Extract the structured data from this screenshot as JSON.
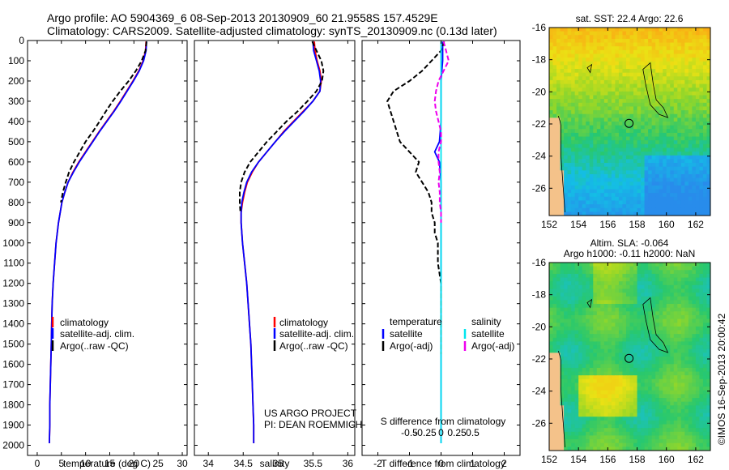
{
  "header": {
    "line1": "Argo profile: AO 5904369_6 08-Sep-2013 20130909_60 21.9558S 157.4529E",
    "line2": "Climatology: CARS2009. Satellite-adjusted climatology: synTS_20130909.nc (0.13d later)"
  },
  "colors": {
    "climatology": "#ff0000",
    "satellite_adj": "#0000ff",
    "argo": "#000000",
    "sat_s": "#00e5ee",
    "argo_s": "#ee00ee"
  },
  "chart_data": [
    {
      "type": "line",
      "id": "temperature",
      "xlabel": "temperature (deg C)",
      "ylabel": "",
      "xlim": [
        -2,
        31
      ],
      "ylim": [
        2050,
        0
      ],
      "xticks": [
        0,
        5,
        10,
        15,
        20,
        25,
        30
      ],
      "yticks": [
        0,
        100,
        200,
        300,
        400,
        500,
        600,
        700,
        800,
        900,
        1000,
        1100,
        1200,
        1300,
        1400,
        1500,
        1600,
        1700,
        1800,
        1900,
        2000
      ],
      "legend": [
        "climatology",
        "satellite-adj. clim.",
        "Argo(..raw -QC)"
      ],
      "legend_position": "lower-middle",
      "series": [
        {
          "name": "climatology",
          "color": "red",
          "depth": [
            5,
            50,
            100,
            150,
            200,
            250,
            300,
            350,
            400,
            450,
            500,
            550,
            600,
            650,
            700,
            750,
            800,
            900,
            1000,
            1100,
            1200,
            1300,
            1400,
            1500,
            1600,
            1700,
            1800,
            1900,
            1990
          ],
          "values": [
            22.5,
            22.4,
            21.9,
            21.0,
            19.8,
            18.5,
            17.2,
            15.8,
            14.3,
            12.8,
            11.4,
            10.0,
            8.6,
            7.4,
            6.4,
            5.7,
            5.1,
            4.4,
            3.9,
            3.6,
            3.3,
            3.1,
            3.0,
            2.9,
            2.8,
            2.7,
            2.6,
            2.6,
            2.5
          ]
        },
        {
          "name": "satellite-adj. clim.",
          "color": "blue",
          "depth": [
            5,
            50,
            100,
            150,
            200,
            250,
            300,
            350,
            400,
            450,
            500,
            550,
            600,
            650,
            700,
            750,
            800,
            900,
            1000,
            1100,
            1200,
            1300,
            1400,
            1500,
            1600,
            1700,
            1800,
            1900,
            1990
          ],
          "values": [
            22.6,
            22.5,
            22.0,
            21.1,
            19.9,
            18.6,
            17.3,
            15.9,
            14.4,
            12.9,
            11.5,
            10.1,
            8.7,
            7.5,
            6.4,
            5.7,
            5.1,
            4.4,
            3.9,
            3.6,
            3.3,
            3.1,
            3.0,
            2.9,
            2.8,
            2.7,
            2.6,
            2.6,
            2.5
          ]
        },
        {
          "name": "Argo(..raw -QC)",
          "color": "black",
          "dashed": true,
          "depth": [
            5,
            50,
            100,
            150,
            200,
            250,
            300,
            350,
            400,
            450,
            500,
            550,
            600,
            650,
            700,
            750,
            800
          ],
          "values": [
            22.6,
            22.4,
            21.6,
            20.4,
            18.9,
            17.2,
            15.6,
            14.2,
            12.9,
            11.5,
            10.0,
            8.8,
            7.6,
            6.6,
            5.9,
            5.3,
            4.9
          ]
        }
      ]
    },
    {
      "type": "line",
      "id": "salinity",
      "xlabel": "salinity",
      "ylabel": "",
      "xlim": [
        33.8,
        36.1
      ],
      "ylim": [
        2050,
        0
      ],
      "xticks": [
        34,
        34.5,
        35,
        35.5,
        36
      ],
      "legend": [
        "climatology",
        "satellite-adj. clim.",
        "Argo(..raw -QC)"
      ],
      "legend_position": "lower-right",
      "annotation": [
        "US ARGO PROJECT",
        "PI: DEAN ROEMMICH"
      ],
      "series": [
        {
          "name": "climatology",
          "color": "red",
          "depth": [
            5,
            50,
            100,
            150,
            200,
            250,
            300,
            350,
            400,
            450,
            500,
            550,
            600,
            650,
            700,
            750,
            800,
            850,
            900,
            1000,
            1100,
            1200,
            1300,
            1400,
            1500,
            1600,
            1700,
            1800,
            1900,
            1990
          ],
          "values": [
            35.52,
            35.53,
            35.56,
            35.6,
            35.62,
            35.6,
            35.5,
            35.36,
            35.22,
            35.08,
            34.96,
            34.84,
            34.72,
            34.63,
            34.56,
            34.52,
            34.49,
            34.47,
            34.47,
            34.49,
            34.52,
            34.55,
            34.57,
            34.59,
            34.61,
            34.62,
            34.63,
            34.64,
            34.65,
            34.65
          ]
        },
        {
          "name": "satellite-adj. clim.",
          "color": "blue",
          "depth": [
            5,
            50,
            100,
            150,
            200,
            250,
            300,
            350,
            400,
            450,
            500,
            550,
            600,
            650,
            700,
            750,
            800,
            850,
            900,
            1000,
            1100,
            1200,
            1300,
            1400,
            1500,
            1600,
            1700,
            1800,
            1900,
            1990
          ],
          "values": [
            35.5,
            35.51,
            35.55,
            35.59,
            35.61,
            35.6,
            35.5,
            35.37,
            35.23,
            35.09,
            34.96,
            34.84,
            34.72,
            34.62,
            34.55,
            34.51,
            34.48,
            34.47,
            34.47,
            34.49,
            34.52,
            34.55,
            34.57,
            34.59,
            34.61,
            34.62,
            34.63,
            34.64,
            34.65,
            34.65
          ]
        },
        {
          "name": "Argo(..raw -QC)",
          "color": "black",
          "dashed": true,
          "depth": [
            5,
            50,
            100,
            150,
            200,
            250,
            300,
            350,
            400,
            450,
            500,
            550,
            600,
            650,
            700,
            750,
            800,
            850
          ],
          "values": [
            35.49,
            35.55,
            35.62,
            35.65,
            35.63,
            35.55,
            35.42,
            35.28,
            35.12,
            34.98,
            34.84,
            34.72,
            34.6,
            34.52,
            34.47,
            34.45,
            34.45,
            34.46
          ]
        }
      ]
    },
    {
      "type": "line",
      "id": "difference",
      "xlabel": "T difference from climatology",
      "xlabel_top": "S difference from climatology",
      "ylabel": "",
      "xlim": [
        -2.5,
        2.5
      ],
      "ylim": [
        2050,
        0
      ],
      "xticks": [
        -2,
        -1,
        0,
        1,
        2
      ],
      "s_ticks": [
        "-0.5",
        "-0.25",
        "0",
        "0.25",
        "0.5"
      ],
      "legend_t_title": "temperature",
      "legend_s_title": "salinity",
      "legend": [
        "satellite",
        "Argo(-adj)",
        "satellite",
        "Argo(-adj)"
      ],
      "series": [
        {
          "name": "T satellite",
          "color": "blue",
          "depth": [
            5,
            100,
            200,
            300,
            400,
            500,
            550,
            600,
            700,
            800,
            900,
            1000,
            1500,
            1990
          ],
          "values": [
            0.05,
            0.05,
            0.0,
            0.0,
            0.0,
            -0.05,
            -0.2,
            -0.05,
            0.0,
            0.0,
            0.0,
            0.0,
            0.0,
            0.0
          ]
        },
        {
          "name": "T Argo(-adj)",
          "color": "black",
          "dashed": true,
          "depth": [
            5,
            50,
            100,
            150,
            200,
            250,
            300,
            350,
            400,
            450,
            500,
            550,
            600,
            650,
            700,
            750,
            800,
            850,
            900,
            950,
            1000,
            1100,
            1200,
            1300,
            1400,
            1500,
            1550
          ],
          "values": [
            0.1,
            0.0,
            -0.3,
            -0.6,
            -1.0,
            -1.5,
            -1.7,
            -1.6,
            -1.5,
            -1.4,
            -1.3,
            -1.0,
            -0.7,
            -0.8,
            -0.6,
            -0.4,
            -0.3,
            -0.3,
            -0.2,
            -0.2,
            -0.1,
            -0.1,
            0.0,
            0.0,
            0.0,
            0.0,
            0.0
          ]
        },
        {
          "name": "S satellite",
          "color": "cyan",
          "depth": [
            5,
            100,
            200,
            300,
            500,
            1000,
            1500,
            1990
          ],
          "values": [
            0.0,
            0.0,
            0.0,
            0.0,
            0.0,
            0.0,
            0.0,
            0.0
          ]
        },
        {
          "name": "S Argo(-adj)",
          "color": "magenta",
          "dashed": true,
          "depth": [
            5,
            50,
            100,
            150,
            200,
            250,
            300,
            350,
            400,
            450,
            500,
            550,
            600,
            650,
            700,
            750,
            800,
            850,
            900
          ],
          "values": [
            0.02,
            0.04,
            0.06,
            0.02,
            -0.02,
            -0.04,
            -0.05,
            -0.04,
            -0.02,
            0.0,
            0.0,
            -0.02,
            -0.02,
            -0.01,
            -0.02,
            -0.01,
            -0.01,
            0.0,
            0.0
          ]
        }
      ]
    },
    {
      "type": "heatmap",
      "id": "sst-map",
      "title": "sat. SST: 22.4 Argo: 22.6",
      "xlim": [
        152,
        163
      ],
      "ylim": [
        -27.7,
        -16
      ],
      "xticks": [
        152,
        154,
        156,
        158,
        160,
        162
      ],
      "yticks": [
        -16,
        -18,
        -20,
        -22,
        -24,
        -26
      ],
      "marker": {
        "lon": 157.45,
        "lat": -21.96
      }
    },
    {
      "type": "heatmap",
      "id": "sla-map",
      "title": "Altim. SLA: -0.064",
      "subtitle": "Argo h1000: -0.11 h2000: NaN",
      "xlim": [
        152,
        163
      ],
      "ylim": [
        -27.7,
        -16
      ],
      "xticks": [
        152,
        154,
        156,
        158,
        160,
        162
      ],
      "yticks": [
        -16,
        -18,
        -20,
        -22,
        -24,
        -26
      ],
      "marker": {
        "lon": 157.45,
        "lat": -21.96
      }
    }
  ],
  "side_text": "©IMOS 16-Sep-2013 20:00:42"
}
